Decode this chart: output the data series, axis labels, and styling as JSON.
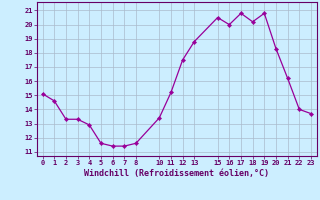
{
  "x": [
    0,
    1,
    2,
    3,
    4,
    5,
    6,
    7,
    8,
    10,
    11,
    12,
    13,
    15,
    16,
    17,
    18,
    19,
    20,
    21,
    22,
    23
  ],
  "y": [
    15.1,
    14.6,
    13.3,
    13.3,
    12.9,
    11.6,
    11.4,
    11.4,
    11.6,
    13.4,
    15.2,
    17.5,
    18.8,
    20.5,
    20.0,
    20.8,
    20.2,
    20.8,
    18.3,
    16.2,
    14.0,
    13.7
  ],
  "x_ticks": [
    0,
    1,
    2,
    3,
    4,
    5,
    6,
    7,
    8,
    10,
    11,
    12,
    13,
    15,
    16,
    17,
    18,
    19,
    20,
    21,
    22,
    23
  ],
  "y_ticks": [
    11,
    12,
    13,
    14,
    15,
    16,
    17,
    18,
    19,
    20,
    21
  ],
  "ylim": [
    10.7,
    21.6
  ],
  "xlim": [
    -0.5,
    23.5
  ],
  "xlabel": "Windchill (Refroidissement éolien,°C)",
  "line_color": "#990099",
  "marker_color": "#990099",
  "bg_color": "#cceeff",
  "grid_color": "#aabbcc",
  "axis_color": "#660066",
  "tick_color": "#660066",
  "label_color": "#660066"
}
